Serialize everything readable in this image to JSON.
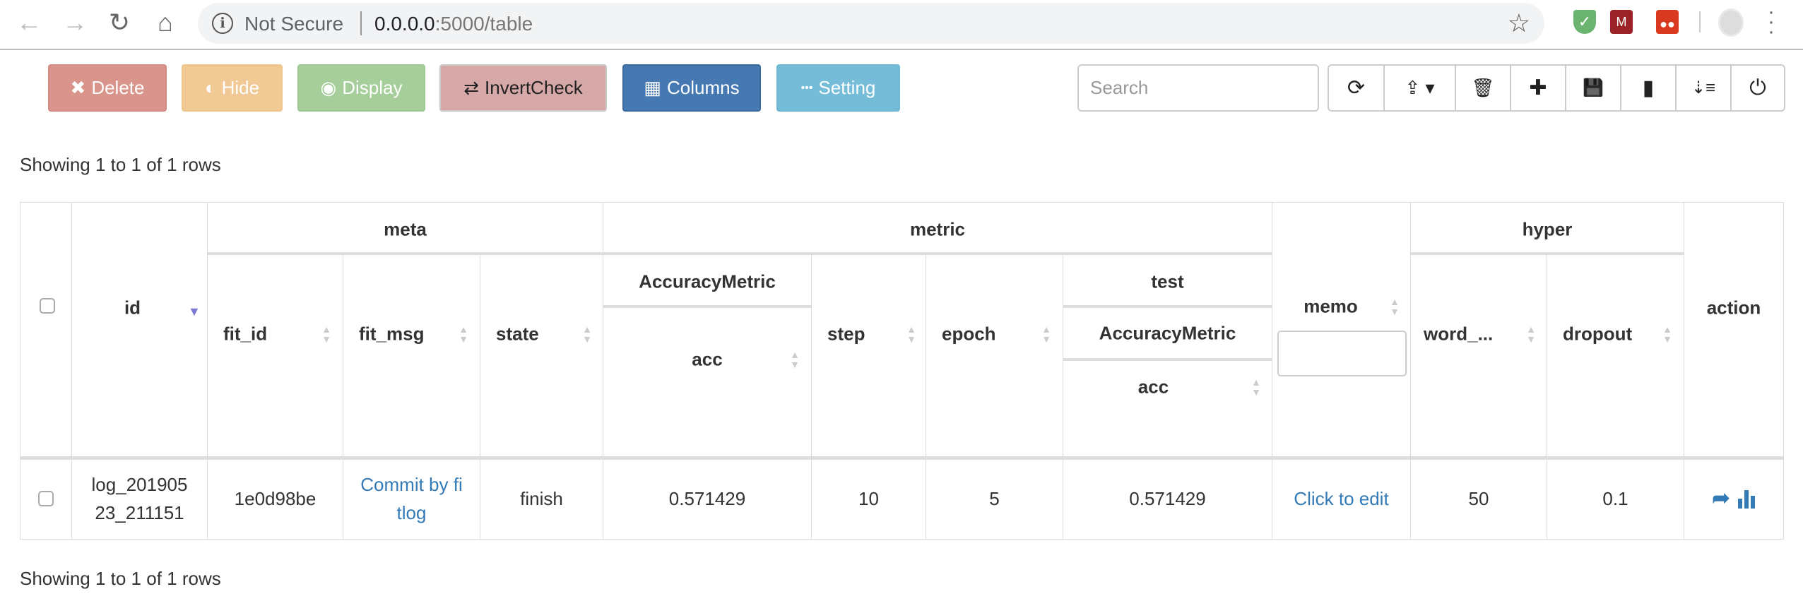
{
  "browser": {
    "security": "Not Secure",
    "host": "0.0.0.0",
    "path": ":5000/table",
    "icons": [
      "back-icon",
      "forward-icon",
      "reload-icon",
      "home-icon",
      "star-icon",
      "adguard-extension-icon",
      "mendeley-extension-icon",
      "ticktick-extension-icon",
      "profile-avatar",
      "menu-icon"
    ]
  },
  "toolbar": {
    "buttons": [
      {
        "label": "Delete",
        "icon": "✖",
        "color": "#d9948c"
      },
      {
        "label": "Hide",
        "icon": "◐",
        "color": "#f0c995"
      },
      {
        "label": "Display",
        "icon": "◉",
        "color": "#a5ce9b"
      },
      {
        "label": "InvertCheck",
        "icon": "⇄",
        "color": "#d6a8a8"
      },
      {
        "label": "Columns",
        "icon": "▦",
        "color": "#4679b2"
      },
      {
        "label": "Setting",
        "icon": "•••",
        "color": "#74bcd8"
      }
    ],
    "search_placeholder": "Search",
    "icon_buttons": [
      {
        "name": "refresh",
        "glyph": "⟳"
      },
      {
        "name": "export",
        "glyph": "⇪ ▾"
      },
      {
        "name": "trash",
        "glyph": "🗑"
      },
      {
        "name": "add",
        "glyph": "✚"
      },
      {
        "name": "save",
        "glyph": "💾"
      },
      {
        "name": "file",
        "glyph": "▮"
      },
      {
        "name": "sort",
        "glyph": "⇣≡"
      },
      {
        "name": "power",
        "glyph": "⏻"
      }
    ]
  },
  "pagination": {
    "top": "Showing 1 to 1 of 1 rows",
    "bottom": "Showing 1 to 1 of 1 rows"
  },
  "table": {
    "headers": {
      "id": "id",
      "meta": "meta",
      "metric": "metric",
      "memo": "memo",
      "hyper": "hyper",
      "action": "action",
      "fit_id": "fit_id",
      "fit_msg": "fit_msg",
      "state": "state",
      "accuracy_metric": "AccuracyMetric",
      "acc": "acc",
      "step": "step",
      "epoch": "epoch",
      "test": "test",
      "test_accuracy_metric": "AccuracyMetric",
      "test_acc": "acc",
      "word": "word_...",
      "dropout": "dropout"
    },
    "memo_filter_value": "",
    "rows": [
      {
        "id_line1": "log_201905",
        "id_line2": "23_211151",
        "fit_id": "1e0d98be",
        "fit_msg_line1": "Commit by fi",
        "fit_msg_line2": "tlog",
        "state": "finish",
        "acc": "0.571429",
        "step": "10",
        "epoch": "5",
        "test_acc": "0.571429",
        "memo": "Click to edit",
        "word": "50",
        "dropout": "0.1",
        "actions": [
          "share-icon",
          "chart-icon"
        ]
      }
    ]
  },
  "colors": {
    "link": "#337ab7",
    "sort_active": "#7b7bd6"
  }
}
